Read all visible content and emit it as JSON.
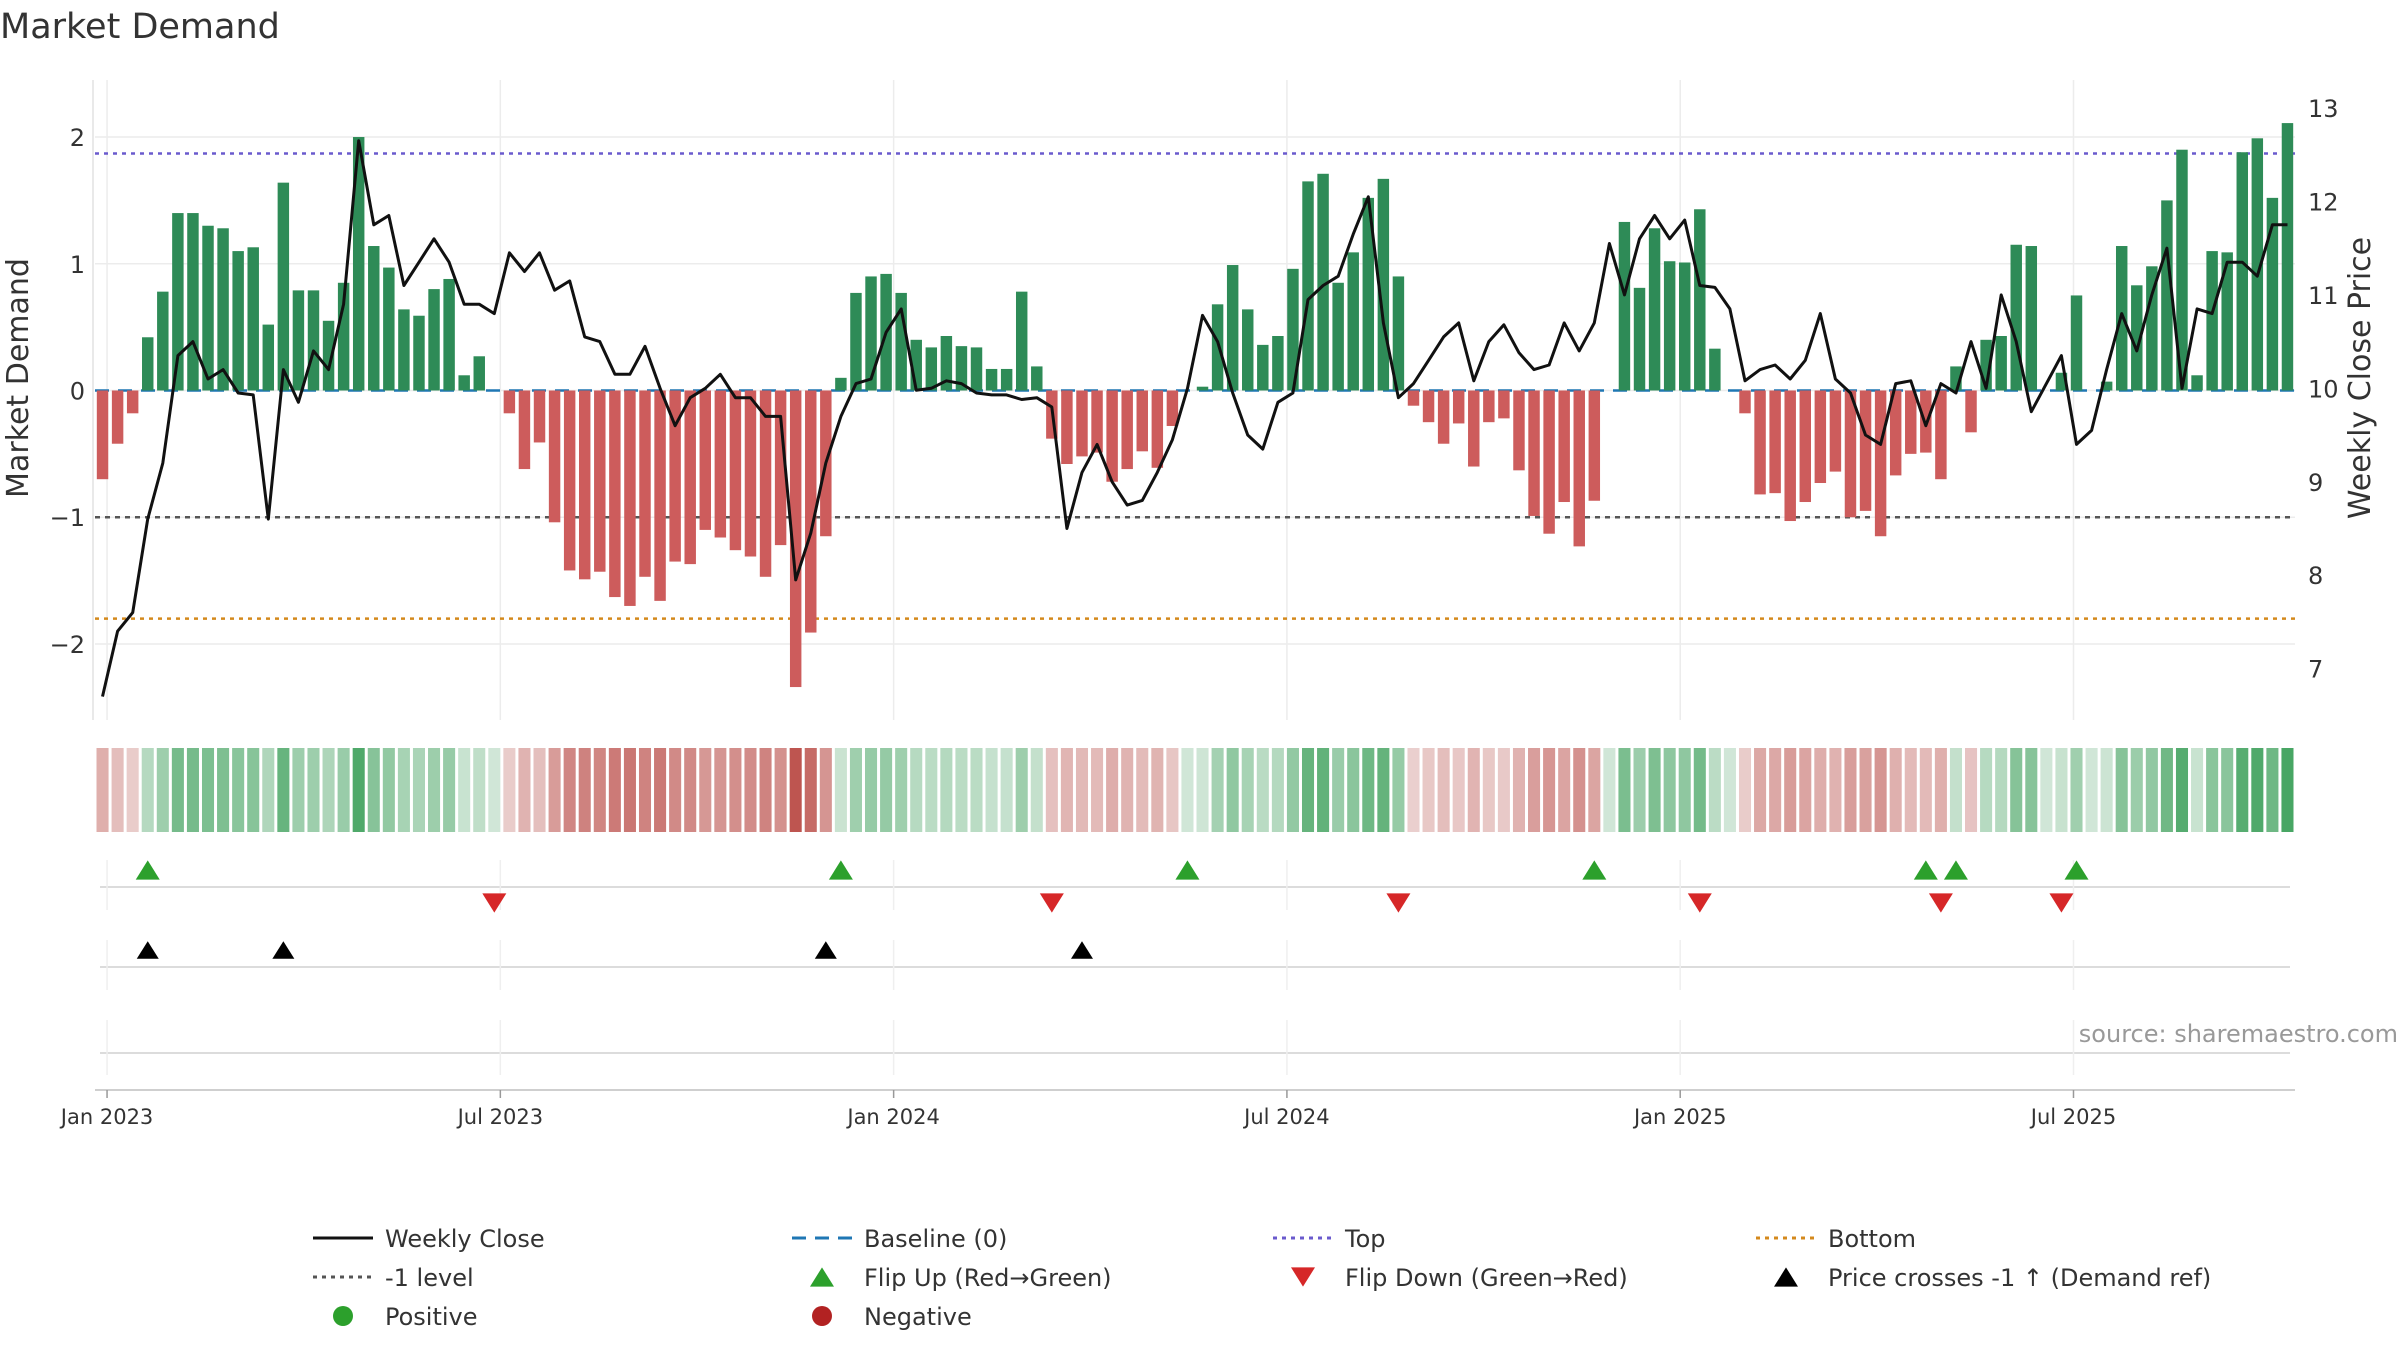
{
  "chart_data": {
    "type": "bar",
    "title": "Market Demand",
    "ylabel": "Market Demand",
    "y2label": "Weekly Close Price",
    "ylim": [
      -2.6,
      2.45
    ],
    "y2lim": [
      6.45,
      13.3
    ],
    "yticks": [
      "2",
      "1",
      "0",
      "−1",
      "−2"
    ],
    "y2ticks": [
      "13",
      "12",
      "11",
      "10",
      "9",
      "8",
      "7"
    ],
    "xticks": [
      "Jan 2023",
      "Jul 2023",
      "Jan 2024",
      "Jul 2024",
      "Jan 2025",
      "Jul 2025"
    ],
    "source": "source: sharemaestro.com",
    "levels": {
      "top": 1.87,
      "bottom": -1.8,
      "minus_one": -1.0,
      "baseline": 0
    },
    "colors": {
      "positive": "#2e8b57",
      "negative": "#cd5c5c",
      "close": "#111111",
      "baseline": "#1f77b4",
      "top": "#6a5acd",
      "bottom": "#d4891c",
      "minus_one": "#555555",
      "flip_up": "#2ca02c",
      "flip_down": "#d62728",
      "cross": "#000000"
    },
    "demand": [
      -0.7,
      -0.42,
      -0.18,
      0.42,
      0.78,
      1.4,
      1.4,
      1.3,
      1.28,
      1.1,
      1.13,
      0.52,
      1.64,
      0.79,
      0.79,
      0.55,
      0.85,
      2.0,
      1.14,
      0.97,
      0.64,
      0.59,
      0.8,
      0.88,
      0.12,
      0.27,
      0.0,
      -0.18,
      -0.62,
      -0.41,
      -1.04,
      -1.42,
      -1.49,
      -1.43,
      -1.63,
      -1.7,
      -1.47,
      -1.66,
      -1.35,
      -1.37,
      -1.1,
      -1.16,
      -1.26,
      -1.31,
      -1.47,
      -1.22,
      -2.34,
      -1.91,
      -1.15,
      0.1,
      0.77,
      0.9,
      0.92,
      0.77,
      0.4,
      0.34,
      0.43,
      0.35,
      0.34,
      0.17,
      0.17,
      0.78,
      0.19,
      -0.38,
      -0.58,
      -0.52,
      -0.49,
      -0.72,
      -0.62,
      -0.48,
      -0.61,
      -0.28,
      0.0,
      0.03,
      0.68,
      0.99,
      0.64,
      0.36,
      0.43,
      0.96,
      1.65,
      1.71,
      0.85,
      1.09,
      1.52,
      1.67,
      0.9,
      -0.12,
      -0.25,
      -0.42,
      -0.26,
      -0.6,
      -0.25,
      -0.22,
      -0.63,
      -0.99,
      -1.13,
      -0.88,
      -1.23,
      -0.87,
      0.0,
      1.33,
      0.81,
      1.28,
      1.02,
      1.01,
      1.43,
      0.33,
      0.0,
      -0.18,
      -0.82,
      -0.81,
      -1.03,
      -0.88,
      -0.73,
      -0.64,
      -1.0,
      -0.95,
      -1.15,
      -0.67,
      -0.5,
      -0.49,
      -0.7,
      0.19,
      -0.33,
      0.4,
      0.43,
      1.15,
      1.14,
      0.0,
      0.14,
      0.75,
      0.0,
      0.07,
      1.14,
      0.83,
      0.98,
      1.5,
      1.9,
      0.12,
      1.1,
      1.09,
      1.88,
      1.99,
      1.52,
      2.11
    ],
    "close": [
      6.7,
      7.4,
      7.6,
      8.6,
      9.2,
      10.35,
      10.5,
      10.1,
      10.2,
      9.95,
      9.93,
      8.6,
      10.2,
      9.85,
      10.4,
      10.2,
      10.9,
      12.65,
      11.75,
      11.85,
      11.1,
      11.35,
      11.6,
      11.35,
      10.9,
      10.9,
      10.8,
      11.45,
      11.25,
      11.45,
      11.05,
      11.15,
      10.55,
      10.5,
      10.15,
      10.15,
      10.45,
      10.0,
      9.6,
      9.9,
      10.0,
      10.15,
      9.9,
      9.9,
      9.7,
      9.7,
      7.95,
      8.45,
      9.2,
      9.7,
      10.05,
      10.1,
      10.6,
      10.85,
      9.98,
      10.0,
      10.08,
      10.05,
      9.95,
      9.93,
      9.93,
      9.88,
      9.9,
      9.8,
      8.5,
      9.1,
      9.4,
      9.0,
      8.75,
      8.8,
      9.1,
      9.45,
      10.0,
      10.78,
      10.5,
      9.95,
      9.5,
      9.35,
      9.85,
      9.95,
      10.95,
      11.1,
      11.2,
      11.65,
      12.05,
      10.7,
      9.9,
      10.05,
      10.3,
      10.55,
      10.7,
      10.08,
      10.5,
      10.68,
      10.38,
      10.2,
      10.25,
      10.7,
      10.4,
      10.7,
      11.55,
      11.0,
      11.6,
      11.85,
      11.6,
      11.8,
      11.1,
      11.08,
      10.85,
      10.08,
      10.2,
      10.25,
      10.1,
      10.3,
      10.8,
      10.1,
      9.95,
      9.5,
      9.4,
      10.05,
      10.08,
      9.6,
      10.05,
      9.95,
      10.5,
      10.0,
      11.0,
      10.5,
      9.75,
      10.05,
      10.35,
      9.4,
      9.55,
      10.2,
      10.8,
      10.4,
      11.0,
      11.5,
      10.0,
      10.85,
      10.8,
      11.35,
      11.35,
      11.2,
      11.75,
      11.75
    ],
    "flip_up": [
      3,
      49,
      72,
      99,
      121,
      123,
      131
    ],
    "flip_down": [
      26,
      63,
      86,
      106,
      122,
      130
    ],
    "crosses": [
      3,
      12,
      48,
      65
    ],
    "legend": [
      {
        "label": "Weekly Close",
        "kind": "line",
        "color": "#111111"
      },
      {
        "label": "Baseline (0)",
        "kind": "dash",
        "color": "#1f77b4"
      },
      {
        "label": "Top",
        "kind": "dot",
        "color": "#6a5acd"
      },
      {
        "label": "Bottom",
        "kind": "dot",
        "color": "#d4891c"
      },
      {
        "label": "-1 level",
        "kind": "dot",
        "color": "#555555"
      },
      {
        "label": "Flip Up (Red→Green)",
        "kind": "up",
        "color": "#2ca02c"
      },
      {
        "label": "Flip Down (Green→Red)",
        "kind": "down",
        "color": "#d62728"
      },
      {
        "label": "Price crosses -1 ↑ (Demand ref)",
        "kind": "up",
        "color": "#000000"
      },
      {
        "label": "Positive",
        "kind": "circle",
        "color": "#2ca02c"
      },
      {
        "label": "Negative",
        "kind": "circle",
        "color": "#b22222"
      }
    ]
  }
}
